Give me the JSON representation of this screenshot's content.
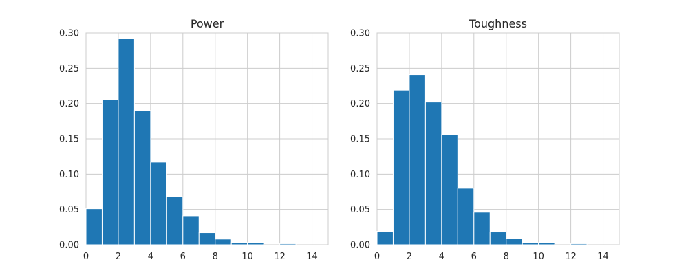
{
  "chart_data": [
    {
      "type": "bar",
      "title": "Power",
      "xlabel": "",
      "ylabel": "",
      "xlim": [
        0,
        15
      ],
      "ylim": [
        0,
        0.3
      ],
      "bin_edges": [
        0,
        1,
        2,
        3,
        4,
        5,
        6,
        7,
        8,
        9,
        10,
        11,
        12,
        13,
        14,
        15
      ],
      "values": [
        0.051,
        0.206,
        0.292,
        0.19,
        0.117,
        0.068,
        0.041,
        0.017,
        0.008,
        0.003,
        0.003,
        0.0,
        0.0015,
        0.0,
        0.0
      ],
      "x_ticks": [
        0,
        2,
        4,
        6,
        8,
        10,
        12,
        14
      ],
      "x_tick_labels": [
        "0",
        "2",
        "4",
        "6",
        "8",
        "10",
        "12",
        "14"
      ],
      "y_ticks": [
        0,
        0.05,
        0.1,
        0.15,
        0.2,
        0.25,
        0.3
      ],
      "y_tick_labels": [
        "0.00",
        "0.05",
        "0.10",
        "0.15",
        "0.20",
        "0.25",
        "0.30"
      ],
      "grid": true,
      "bar_color": "#1f77b4"
    },
    {
      "type": "bar",
      "title": "Toughness",
      "xlabel": "",
      "ylabel": "",
      "xlim": [
        0,
        15
      ],
      "ylim": [
        0,
        0.3
      ],
      "bin_edges": [
        0,
        1,
        2,
        3,
        4,
        5,
        6,
        7,
        8,
        9,
        10,
        11,
        12,
        13,
        14,
        15
      ],
      "values": [
        0.019,
        0.219,
        0.241,
        0.202,
        0.156,
        0.08,
        0.046,
        0.018,
        0.009,
        0.003,
        0.003,
        0.0,
        0.0015,
        0.0,
        0.0
      ],
      "x_ticks": [
        0,
        2,
        4,
        6,
        8,
        10,
        12,
        14
      ],
      "x_tick_labels": [
        "0",
        "2",
        "4",
        "6",
        "8",
        "10",
        "12",
        "14"
      ],
      "y_ticks": [
        0,
        0.05,
        0.1,
        0.15,
        0.2,
        0.25,
        0.3
      ],
      "y_tick_labels": [
        "0.00",
        "0.05",
        "0.10",
        "0.15",
        "0.20",
        "0.25",
        "0.30"
      ],
      "grid": true,
      "bar_color": "#1f77b4"
    }
  ]
}
